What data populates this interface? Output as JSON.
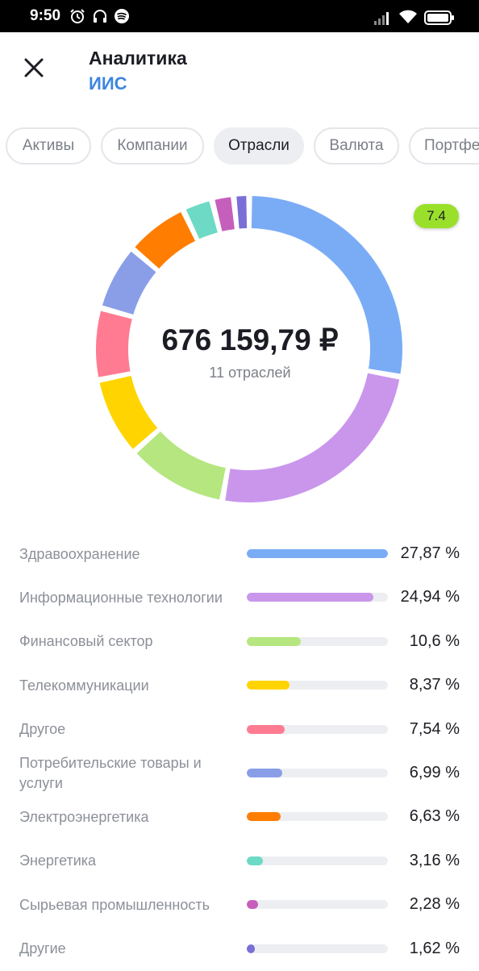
{
  "status_bar": {
    "time": "9:50",
    "icons": [
      "alarm-icon",
      "headphones-icon",
      "spotify-icon",
      "signal-icon",
      "wifi-icon",
      "battery-icon"
    ]
  },
  "header": {
    "title": "Аналитика",
    "subtitle": "ИИС",
    "close_icon": "close-icon"
  },
  "tabs": [
    {
      "label": "Активы",
      "active": false
    },
    {
      "label": "Компании",
      "active": false
    },
    {
      "label": "Отрасли",
      "active": true
    },
    {
      "label": "Валюта",
      "active": false
    },
    {
      "label": "Портфе",
      "active": false
    }
  ],
  "summary": {
    "total": "676 159,79 ₽",
    "count_label": "11 отраслей",
    "badge": "7.4",
    "badge_color": "#9ae02b"
  },
  "sectors": [
    {
      "name": "Здравоохранение",
      "value": "27,87 %",
      "pct": 27.87,
      "color": "#7aacf6"
    },
    {
      "name": "Информационные технологии",
      "value": "24,94 %",
      "pct": 24.94,
      "color": "#c996ec"
    },
    {
      "name": "Финансовый сектор",
      "value": "10,6 %",
      "pct": 10.6,
      "color": "#b5e67f"
    },
    {
      "name": "Телекоммуникации",
      "value": "8,37 %",
      "pct": 8.37,
      "color": "#ffd400"
    },
    {
      "name": "Другое",
      "value": "7,54 %",
      "pct": 7.54,
      "color": "#ff7b91"
    },
    {
      "name": "Потребительские товары и услуги",
      "value": "6,99 %",
      "pct": 6.99,
      "color": "#8a9ee8"
    },
    {
      "name": "Электроэнергетика",
      "value": "6,63 %",
      "pct": 6.63,
      "color": "#ff7d00"
    },
    {
      "name": "Энергетика",
      "value": "3,16 %",
      "pct": 3.16,
      "color": "#6ddac5"
    },
    {
      "name": "Сырьевая промышленность",
      "value": "2,28 %",
      "pct": 2.28,
      "color": "#c65fbb"
    },
    {
      "name": "Другие",
      "value": "1,62 %",
      "pct": 1.62,
      "color": "#7a6fd6"
    }
  ]
}
